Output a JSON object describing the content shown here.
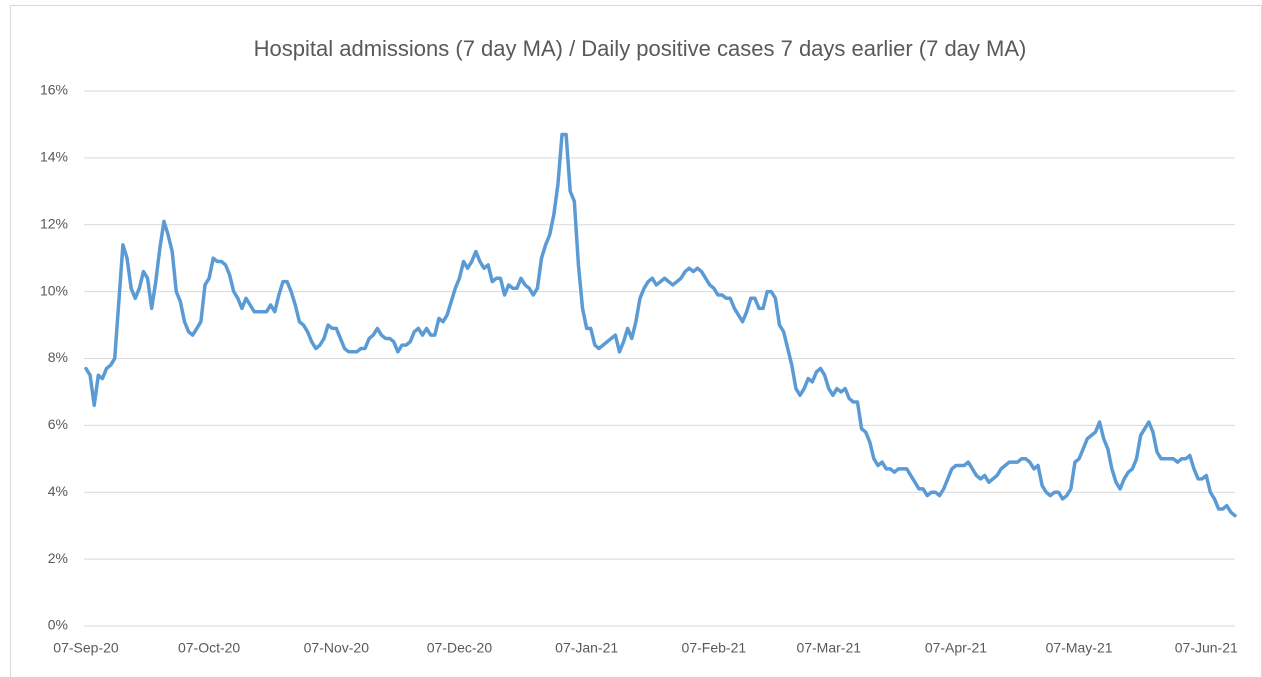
{
  "chart_data": {
    "type": "line",
    "title": "Hospital admissions  (7 day MA) / Daily positive cases  7 days earlier (7 day MA)",
    "color": "#5b9bd5",
    "grid": true,
    "ylim": [
      0,
      16
    ],
    "yticks": [
      {
        "value": 0,
        "label": "0%"
      },
      {
        "value": 2,
        "label": "2%"
      },
      {
        "value": 4,
        "label": "4%"
      },
      {
        "value": 6,
        "label": "6%"
      },
      {
        "value": 8,
        "label": "8%"
      },
      {
        "value": 10,
        "label": "10%"
      },
      {
        "value": 12,
        "label": "12%"
      },
      {
        "value": 14,
        "label": "14%"
      },
      {
        "value": 16,
        "label": "16%"
      }
    ],
    "categories": [
      "07-Sep-20",
      null,
      null,
      null,
      null,
      null,
      null,
      null,
      null,
      null,
      null,
      null,
      null,
      null,
      null,
      null,
      null,
      null,
      null,
      null,
      null,
      null,
      null,
      null,
      null,
      null,
      null,
      null,
      null,
      null,
      "07-Oct-20",
      null,
      null,
      null,
      null,
      null,
      null,
      null,
      null,
      null,
      null,
      null,
      null,
      null,
      null,
      null,
      null,
      null,
      null,
      null,
      null,
      null,
      null,
      null,
      null,
      null,
      null,
      null,
      null,
      null,
      null,
      "07-Nov-20",
      null,
      null,
      null,
      null,
      null,
      null,
      null,
      null,
      null,
      null,
      null,
      null,
      null,
      null,
      null,
      null,
      null,
      null,
      null,
      null,
      null,
      null,
      null,
      null,
      null,
      null,
      null,
      null,
      null,
      "07-Dec-20",
      null,
      null,
      null,
      null,
      null,
      null,
      null,
      null,
      null,
      null,
      null,
      null,
      null,
      null,
      null,
      null,
      null,
      null,
      null,
      null,
      null,
      null,
      null,
      null,
      null,
      null,
      null,
      null,
      null,
      null,
      "07-Jan-21",
      null,
      null,
      null,
      null,
      null,
      null,
      null,
      null,
      null,
      null,
      null,
      null,
      null,
      null,
      null,
      null,
      null,
      null,
      null,
      null,
      null,
      null,
      null,
      null,
      null,
      null,
      null,
      null,
      null,
      null,
      "07-Feb-21",
      null,
      null,
      null,
      null,
      null,
      null,
      null,
      null,
      null,
      null,
      null,
      null,
      null,
      null,
      null,
      null,
      null,
      null,
      null,
      null,
      null,
      null,
      null,
      null,
      null,
      null,
      null,
      "07-Mar-21",
      null,
      null,
      null,
      null,
      null,
      null,
      null,
      null,
      null,
      null,
      null,
      null,
      null,
      null,
      null,
      null,
      null,
      null,
      null,
      null,
      null,
      null,
      null,
      null,
      null,
      null,
      null,
      null,
      null,
      null,
      "07-Apr-21",
      null,
      null,
      null,
      null,
      null,
      null,
      null,
      null,
      null,
      null,
      null,
      null,
      null,
      null,
      null,
      null,
      null,
      null,
      null,
      null,
      null,
      null,
      null,
      null,
      null,
      null,
      null,
      null,
      null,
      "07-May-21",
      null,
      null,
      null,
      null,
      null,
      null,
      null,
      null,
      null,
      null,
      null,
      null,
      null,
      null,
      null,
      null,
      null,
      null,
      null,
      null,
      null,
      null,
      null,
      null,
      null,
      null,
      null,
      null,
      null,
      null,
      "07-Jun-21",
      null,
      null,
      null,
      null,
      null,
      null,
      null
    ],
    "values": [
      7.7,
      7.5,
      6.6,
      7.5,
      7.4,
      7.7,
      7.8,
      8.0,
      9.7,
      11.4,
      11.0,
      10.1,
      9.8,
      10.1,
      10.6,
      10.4,
      9.5,
      10.3,
      11.3,
      12.1,
      11.7,
      11.2,
      10.0,
      9.7,
      9.1,
      8.8,
      8.7,
      8.9,
      9.1,
      10.2,
      10.4,
      11.0,
      10.9,
      10.9,
      10.8,
      10.5,
      10.0,
      9.8,
      9.5,
      9.8,
      9.6,
      9.4,
      9.4,
      9.4,
      9.4,
      9.6,
      9.4,
      9.9,
      10.3,
      10.3,
      10.0,
      9.6,
      9.1,
      9.0,
      8.8,
      8.5,
      8.3,
      8.4,
      8.6,
      9.0,
      8.9,
      8.9,
      8.6,
      8.3,
      8.2,
      8.2,
      8.2,
      8.3,
      8.3,
      8.6,
      8.7,
      8.9,
      8.7,
      8.6,
      8.6,
      8.5,
      8.2,
      8.4,
      8.4,
      8.5,
      8.8,
      8.9,
      8.7,
      8.9,
      8.7,
      8.7,
      9.2,
      9.1,
      9.3,
      9.7,
      10.1,
      10.4,
      10.9,
      10.7,
      10.9,
      11.2,
      10.9,
      10.7,
      10.8,
      10.3,
      10.4,
      10.4,
      9.9,
      10.2,
      10.1,
      10.1,
      10.4,
      10.2,
      10.1,
      9.9,
      10.1,
      11.0,
      11.4,
      11.7,
      12.3,
      13.2,
      14.7,
      14.7,
      13.0,
      12.7,
      10.8,
      9.5,
      8.9,
      8.9,
      8.4,
      8.3,
      8.4,
      8.5,
      8.6,
      8.7,
      8.2,
      8.5,
      8.9,
      8.6,
      9.1,
      9.8,
      10.1,
      10.3,
      10.4,
      10.2,
      10.3,
      10.4,
      10.3,
      10.2,
      10.3,
      10.4,
      10.6,
      10.7,
      10.6,
      10.7,
      10.6,
      10.4,
      10.2,
      10.1,
      9.9,
      9.9,
      9.8,
      9.8,
      9.5,
      9.3,
      9.1,
      9.4,
      9.8,
      9.8,
      9.5,
      9.5,
      10.0,
      10.0,
      9.8,
      9.0,
      8.8,
      8.3,
      7.8,
      7.1,
      6.9,
      7.1,
      7.4,
      7.3,
      7.6,
      7.7,
      7.5,
      7.1,
      6.9,
      7.1,
      7.0,
      7.1,
      6.8,
      6.7,
      6.7,
      5.9,
      5.8,
      5.5,
      5.0,
      4.8,
      4.9,
      4.7,
      4.7,
      4.6,
      4.7,
      4.7,
      4.7,
      4.5,
      4.3,
      4.1,
      4.1,
      3.9,
      4.0,
      4.0,
      3.9,
      4.1,
      4.4,
      4.7,
      4.8,
      4.8,
      4.8,
      4.9,
      4.7,
      4.5,
      4.4,
      4.5,
      4.3,
      4.4,
      4.5,
      4.7,
      4.8,
      4.9,
      4.9,
      4.9,
      5.0,
      5.0,
      4.9,
      4.7,
      4.8,
      4.2,
      4.0,
      3.9,
      4.0,
      4.0,
      3.8,
      3.9,
      4.1,
      4.9,
      5.0,
      5.3,
      5.6,
      5.7,
      5.8,
      6.1,
      5.6,
      5.3,
      4.7,
      4.3,
      4.1,
      4.4,
      4.6,
      4.7,
      5.0,
      5.7,
      5.9,
      6.1,
      5.8,
      5.2,
      5.0,
      5.0,
      5.0,
      5.0,
      4.9,
      5.0,
      5.0,
      5.1,
      4.7,
      4.4,
      4.4,
      4.5,
      4.0,
      3.8,
      3.5,
      3.5,
      3.6,
      3.4,
      3.3
    ]
  }
}
